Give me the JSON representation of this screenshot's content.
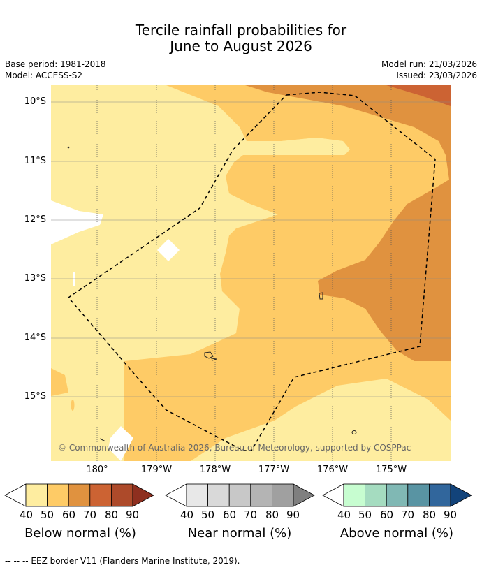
{
  "header": {
    "title_line1": "Tercile rainfall probabilities for",
    "title_line2": "June to August 2026",
    "base_period": "Base period: 1981-2018",
    "model": "Model: ACCESS-S2",
    "model_run": "Model run: 21/03/2026",
    "issued": "Issued: 23/03/2026"
  },
  "map": {
    "lat_labels": [
      "10°S",
      "11°S",
      "12°S",
      "13°S",
      "14°S",
      "15°S"
    ],
    "lon_labels": [
      "180°",
      "179°W",
      "178°W",
      "177°W",
      "176°W",
      "175°W"
    ],
    "copyright": "© Commonwealth of Australia 2026, Bureau of Meteorology, supported by COSPPac",
    "colors": {
      "below_40": "#feeda0",
      "below_50": "#fecb66",
      "below_60": "#e0923f",
      "below_70": "#cc6333"
    }
  },
  "colorbars": [
    {
      "title": "Below normal (%)",
      "ticks": [
        "40",
        "50",
        "60",
        "70",
        "80",
        "90"
      ],
      "colors": [
        "#feeda0",
        "#fecb66",
        "#e0923f",
        "#cc6333",
        "#ad4a2a",
        "#8e2f1f"
      ]
    },
    {
      "title": "Near normal (%)",
      "ticks": [
        "40",
        "50",
        "60",
        "70",
        "80",
        "90"
      ],
      "colors": [
        "#e8e8e8",
        "#d9d9d9",
        "#c8c8c8",
        "#b4b4b4",
        "#a0a0a0",
        "#7f7f7f"
      ]
    },
    {
      "title": "Above normal (%)",
      "ticks": [
        "40",
        "50",
        "60",
        "70",
        "80",
        "90"
      ],
      "colors": [
        "#c7fdd0",
        "#a5dcc0",
        "#80b8b4",
        "#5994a3",
        "#31669c",
        "#12437a"
      ]
    }
  ],
  "footer": "--  --  -- EEZ border V11 (Flanders Marine Institute, 2019)."
}
